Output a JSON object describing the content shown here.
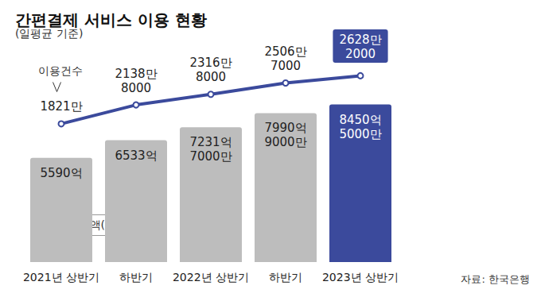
{
  "chart_data": {
    "type": "bar",
    "title": "간편결제 서비스 이용 현황",
    "subtitle": "(일평균 기준)",
    "source": "자료: 한국은행",
    "categories": [
      "2021년 상반기",
      "하반기",
      "2022년 상반기",
      "하반기",
      "2023년 상반기"
    ],
    "series": [
      {
        "name": "이용금액(원)",
        "type": "bar",
        "values": [
          559000000000,
          653300000000,
          723170000000,
          799090000000,
          845050000000
        ],
        "value_labels": [
          "5590억",
          "6533억",
          "7231억\n7000만",
          "7990억\n9000만",
          "8450억\n5000만"
        ],
        "colors": [
          "#bdbdbd",
          "#bdbdbd",
          "#bdbdbd",
          "#bdbdbd",
          "#3b4a9c"
        ]
      },
      {
        "name": "이용건수",
        "type": "line",
        "axis": "y2",
        "color": "#3b4a9c",
        "marker": "circle",
        "values": [
          18210000,
          21388000,
          23168000,
          25067000,
          26282000
        ],
        "value_labels": [
          "1821만",
          "2138만\n8000",
          "2316만\n8000",
          "2506만\n7000",
          "2628만\n2000"
        ]
      }
    ],
    "ylim": [
      0,
      1150000000000
    ],
    "y2lim": [
      -5000000,
      31000000
    ],
    "data_labels": true,
    "tick_labels": "x",
    "grid": false
  }
}
